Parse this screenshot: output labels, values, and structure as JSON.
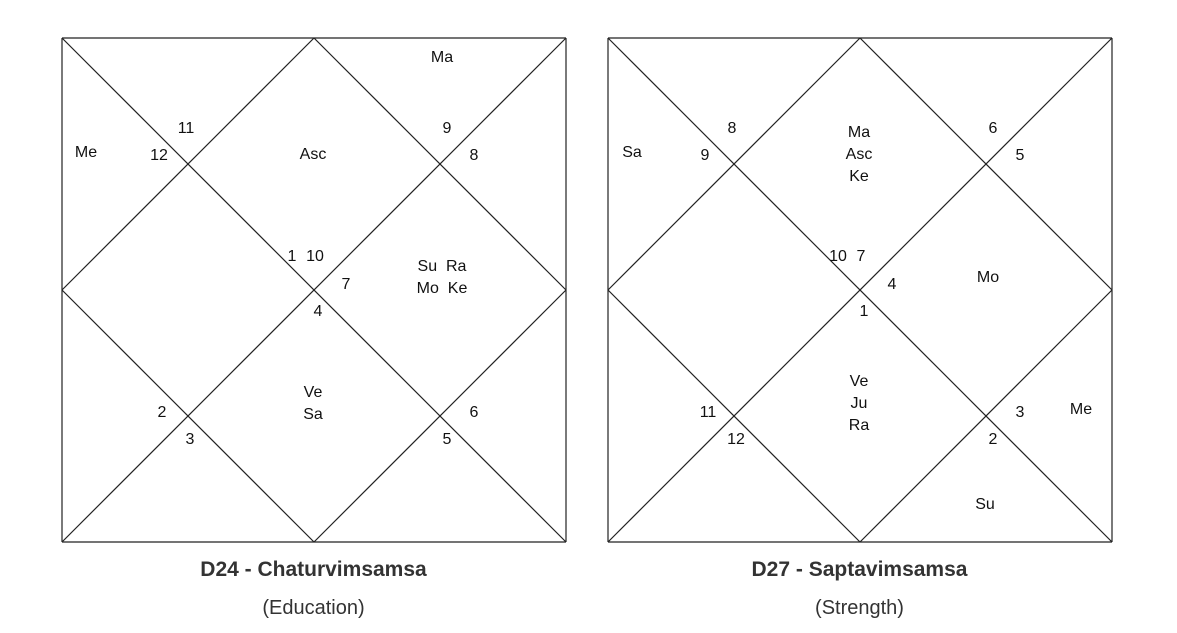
{
  "charts": [
    {
      "title": "D24 - Chaturvimsamsa",
      "subtitle": "(Education)",
      "houses": [
        {
          "label": "11",
          "planets": []
        },
        {
          "label": "12",
          "planets": [
            "Me"
          ]
        },
        {
          "label": "1",
          "planets": []
        },
        {
          "label": "2",
          "planets": []
        },
        {
          "label": "3",
          "planets": []
        },
        {
          "label": "4",
          "planets": [
            "Ve",
            "Sa"
          ]
        },
        {
          "label": "5",
          "planets": []
        },
        {
          "label": "6",
          "planets": []
        },
        {
          "label": "7",
          "planets": [
            "Su  Ra",
            "Mo  Ke"
          ]
        },
        {
          "label": "8",
          "planets": []
        },
        {
          "label": "9",
          "planets": [
            "Ma"
          ]
        },
        {
          "label": "10",
          "planets": [
            "Asc"
          ]
        }
      ]
    },
    {
      "title": "D27 - Saptavimsamsa",
      "subtitle": "(Strength)",
      "houses": [
        {
          "label": "8",
          "planets": []
        },
        {
          "label": "9",
          "planets": [
            "Sa"
          ]
        },
        {
          "label": "10",
          "planets": []
        },
        {
          "label": "11",
          "planets": []
        },
        {
          "label": "12",
          "planets": []
        },
        {
          "label": "1",
          "planets": [
            "Ve",
            "Ju",
            "Ra"
          ]
        },
        {
          "label": "2",
          "planets": [
            "Su"
          ]
        },
        {
          "label": "3",
          "planets": [
            "Me"
          ]
        },
        {
          "label": "4",
          "planets": [
            "Mo"
          ]
        },
        {
          "label": "5",
          "planets": []
        },
        {
          "label": "6",
          "planets": []
        },
        {
          "label": "7",
          "planets": [
            "Ma",
            "Asc",
            "Ke"
          ]
        }
      ]
    }
  ],
  "colors": {
    "line": "#222222",
    "text": "#111111",
    "title": "#333333"
  }
}
